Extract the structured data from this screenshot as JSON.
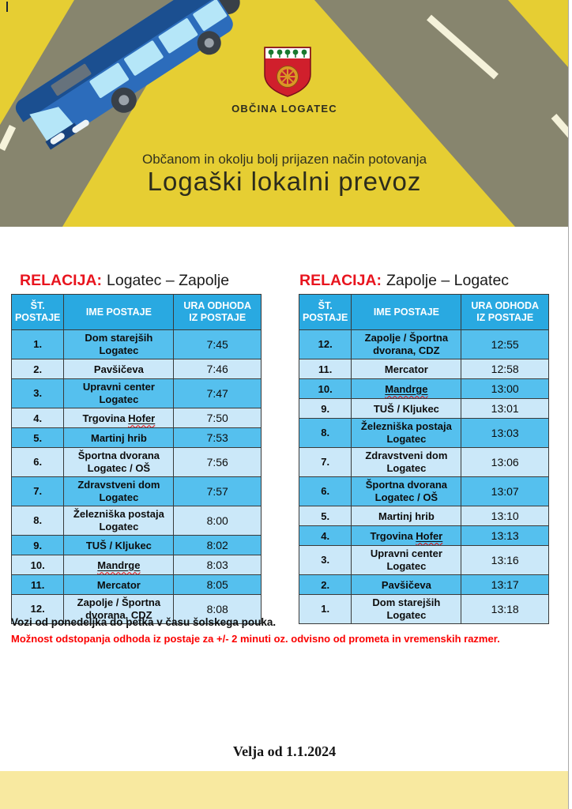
{
  "header": {
    "municipality": "OBČINA LOGATEC",
    "subtitle": "Občanom in okolju bolj prijazen način potovanja",
    "title": "Logaški lokalni prevoz",
    "icons": {
      "bus": "bus-illustration",
      "emblem": "logatec-coat-of-arms"
    }
  },
  "tables": [
    {
      "relation_label": "RELACIJA:",
      "relation_route": "Logatec – Zapolje",
      "headers": [
        "ŠT.\nPOSTAJE",
        "IME POSTAJE",
        "URA ODHODA\nIZ POSTAJE"
      ],
      "rows": [
        {
          "num": "1.",
          "name": "Dom starejših\nLogatec",
          "time": "7:45"
        },
        {
          "num": "2.",
          "name": "Pavšičeva",
          "time": "7:46"
        },
        {
          "num": "3.",
          "name": "Upravni center\nLogatec",
          "time": "7:47"
        },
        {
          "num": "4.",
          "name": "Trgovina Hofer",
          "time": "7:50",
          "marked": "Hofer"
        },
        {
          "num": "5.",
          "name": "Martinj hrib",
          "time": "7:53"
        },
        {
          "num": "6.",
          "name": "Športna dvorana\nLogatec / OŠ",
          "time": "7:56"
        },
        {
          "num": "7.",
          "name": "Zdravstveni dom\nLogatec",
          "time": "7:57"
        },
        {
          "num": "8.",
          "name": "Železniška postaja\nLogatec",
          "time": "8:00"
        },
        {
          "num": "9.",
          "name": "TUŠ / Kljukec",
          "time": "8:02"
        },
        {
          "num": "10.",
          "name": "Mandrge",
          "time": "8:03",
          "marked": "Mandrge"
        },
        {
          "num": "11.",
          "name": "Mercator",
          "time": "8:05"
        },
        {
          "num": "12.",
          "name": "Zapolje / Športna\ndvorana, CDZ",
          "time": "8:08"
        }
      ]
    },
    {
      "relation_label": "RELACIJA:",
      "relation_route": "Zapolje – Logatec",
      "headers": [
        "ŠT.\nPOSTAJE",
        "IME POSTAJE",
        "URA ODHODA\nIZ POSTAJE"
      ],
      "rows": [
        {
          "num": "12.",
          "name": "Zapolje / Športna\ndvorana, CDZ",
          "time": "12:55"
        },
        {
          "num": "11.",
          "name": "Mercator",
          "time": "12:58"
        },
        {
          "num": "10.",
          "name": "Mandrge",
          "time": "13:00",
          "marked": "Mandrge"
        },
        {
          "num": "9.",
          "name": "TUŠ / Kljukec",
          "time": "13:01"
        },
        {
          "num": "8.",
          "name": "Železniška postaja\nLogatec",
          "time": "13:03"
        },
        {
          "num": "7.",
          "name": "Zdravstveni dom\nLogatec",
          "time": "13:06"
        },
        {
          "num": "6.",
          "name": "Športna dvorana\nLogatec / OŠ",
          "time": "13:07"
        },
        {
          "num": "5.",
          "name": "Martinj hrib",
          "time": "13:10"
        },
        {
          "num": "4.",
          "name": "Trgovina Hofer",
          "time": "13:13",
          "marked": "Hofer"
        },
        {
          "num": "3.",
          "name": "Upravni center\nLogatec",
          "time": "13:16"
        },
        {
          "num": "2.",
          "name": "Pavšičeva",
          "time": "13:17"
        },
        {
          "num": "1.",
          "name": "Dom starejših\nLogatec",
          "time": "13:18"
        }
      ]
    }
  ],
  "notes": {
    "schedule": "Vozi od ponedeljka do petka v času šolskega pouka.",
    "deviation": "Možnost odstopanja odhoda iz postaje za +/- 2 minuti oz. odvisno od prometa in vremenskih razmer."
  },
  "validity": "Velja od 1.1.2024",
  "colors": {
    "header_yellow": "#e6ce33",
    "road_gray": "#87856e",
    "dash_cream": "#f5f2da",
    "table_header_blue": "#29a9e1",
    "row_dark": "#55c0ee",
    "row_light": "#cbe8f9",
    "relacija_red": "#e8141e",
    "note_red": "#fb0000",
    "squiggle_red": "#e20000",
    "bottom_bar_yellow": "#f8e9a0",
    "bus_navy": "#1b4f90",
    "bus_blue": "#2c6cbb",
    "bus_window_blue": "#b5e6f8",
    "emblem_red": "#d01f2c",
    "emblem_gold": "#db9726",
    "emblem_green": "#19792f"
  }
}
